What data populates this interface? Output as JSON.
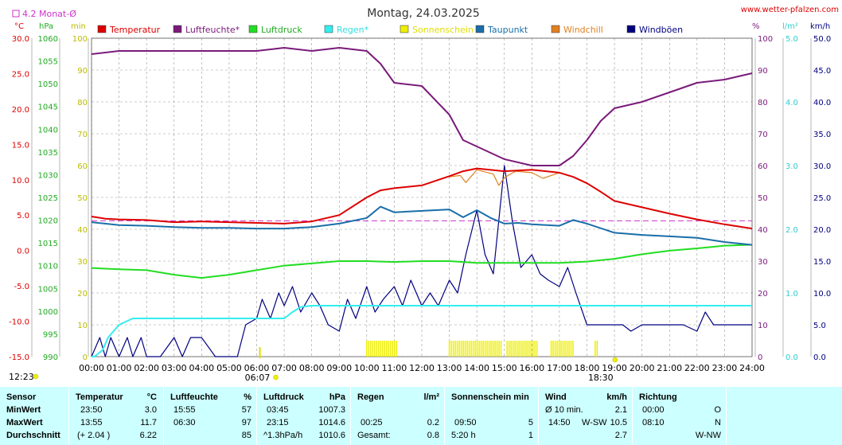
{
  "header": {
    "title": "Montag, 24.03.2025",
    "site": "www.wetter-pfalzen.com",
    "monthly_avg": "4.2 Monat-Ø"
  },
  "colors": {
    "temperatur": "#dd0000",
    "luftfeuchte": "#7a1a7a",
    "luftdruck": "#22dd22",
    "regen": "#33eeee",
    "sonnenschein": "#eeee00",
    "taupunkt": "#1a6ea8",
    "windchill": "#e08020",
    "windboeen": "#000080",
    "monthly_avg": "#cc33cc"
  },
  "chart_data": {
    "type": "line",
    "title": "Montag, 24.03.2025",
    "legend": [
      "Temperatur",
      "Luftfeuchte*",
      "Luftdruck",
      "Regen*",
      "Sonnenschein",
      "Taupunkt",
      "Windchill",
      "Windböen"
    ],
    "axis_units": {
      "temp": "°C",
      "pressure": "hPa",
      "sun": "min",
      "humidity": "%",
      "rain": "l/m²",
      "wind": "km/h"
    },
    "y_temp": {
      "range": [
        -15,
        30
      ],
      "ticks": [
        "30.0",
        "25.0",
        "20.0",
        "15.0",
        "10.0",
        "5.0",
        "0.0",
        "-5.0",
        "-10.0",
        "-15.0"
      ]
    },
    "y_pressure": {
      "range": [
        990,
        1060
      ],
      "ticks": [
        "1060",
        "1055",
        "1050",
        "1045",
        "1040",
        "1035",
        "1030",
        "1025",
        "1020",
        "1015",
        "1010",
        "1005",
        "1000",
        "995",
        "990"
      ]
    },
    "y_sun": {
      "range": [
        0,
        100
      ],
      "ticks": [
        "100",
        "90",
        "80",
        "70",
        "60",
        "50",
        "40",
        "30",
        "20",
        "10",
        "0"
      ]
    },
    "y_humidity": {
      "range": [
        0,
        100
      ],
      "ticks": [
        "100",
        "90",
        "80",
        "70",
        "60",
        "50",
        "40",
        "30",
        "20",
        "10",
        "0"
      ]
    },
    "y_rain": {
      "range": [
        0,
        5
      ],
      "ticks": [
        "5.0",
        "4.0",
        "3.0",
        "2.0",
        "1.0",
        "0.0"
      ]
    },
    "y_wind": {
      "range": [
        0,
        50
      ],
      "ticks": [
        "50.0",
        "45.0",
        "40.0",
        "35.0",
        "30.0",
        "25.0",
        "20.0",
        "15.0",
        "10.0",
        "5.0",
        "0.0"
      ]
    },
    "x_hours": [
      "00:00",
      "01:00",
      "02:00",
      "03:00",
      "04:00",
      "05:00",
      "06:00",
      "07:00",
      "08:00",
      "09:00",
      "10:00",
      "11:00",
      "12:00",
      "13:00",
      "14:00",
      "15:00",
      "16:00",
      "17:00",
      "18:00",
      "19:00",
      "20:00",
      "21:00",
      "22:00",
      "23:00",
      "24:00"
    ],
    "sunrise": "06:07",
    "sunset": "18:30",
    "day_length": "12:23",
    "monthly_avg_temp": 4.2,
    "series": [
      {
        "name": "Temperatur",
        "axis": "temp",
        "x": [
          0,
          0.5,
          1,
          2,
          3,
          4,
          5,
          6,
          7,
          8,
          9,
          10,
          10.5,
          11,
          12,
          13,
          13.5,
          14,
          15,
          16,
          17,
          17.5,
          18,
          18.5,
          19,
          20,
          21,
          22,
          23,
          24
        ],
        "y": [
          4.8,
          4.5,
          4.4,
          4.3,
          4.0,
          4.1,
          4.0,
          3.9,
          3.8,
          4.1,
          5.0,
          7.5,
          8.5,
          8.8,
          9.2,
          10.5,
          11.2,
          11.6,
          11.2,
          11.4,
          11.0,
          10.4,
          9.5,
          8.3,
          7.0,
          6.1,
          5.2,
          4.4,
          3.7,
          3.1
        ]
      },
      {
        "name": "Luftfeuchte*",
        "axis": "humidity",
        "x": [
          0,
          1,
          2,
          3,
          4,
          5,
          6,
          7,
          8,
          9,
          10,
          10.5,
          11,
          12,
          13,
          13.5,
          14,
          15,
          16,
          17,
          17.5,
          18,
          18.5,
          19,
          20,
          21,
          22,
          23,
          24
        ],
        "y": [
          95,
          96,
          96,
          96,
          96,
          96,
          96,
          97,
          96,
          97,
          96,
          92,
          86,
          85,
          76,
          68,
          66,
          62,
          60,
          60,
          63,
          68,
          74,
          78,
          80,
          83,
          86,
          87,
          89
        ]
      },
      {
        "name": "Luftdruck",
        "axis": "pressure",
        "x": [
          0,
          1,
          2,
          3,
          4,
          5,
          6,
          7,
          8,
          9,
          10,
          11,
          12,
          13,
          14,
          15,
          16,
          17,
          18,
          19,
          20,
          21,
          22,
          23,
          24
        ],
        "y": [
          1009.5,
          1009.2,
          1009.0,
          1008.0,
          1007.3,
          1008.0,
          1009.0,
          1010.0,
          1010.5,
          1011.0,
          1011.0,
          1010.8,
          1011.0,
          1011.0,
          1010.6,
          1010.6,
          1010.6,
          1010.6,
          1010.9,
          1011.5,
          1012.5,
          1013.3,
          1013.8,
          1014.4,
          1014.6
        ]
      },
      {
        "name": "Regen*",
        "axis": "rain",
        "x": [
          0,
          0.1,
          0.4,
          0.6,
          0.8,
          1.0,
          1.5,
          2.0,
          3.0,
          4.0,
          5.0,
          6.0,
          7.0,
          7.3,
          7.6,
          8.0,
          9.0,
          10.0,
          11.0,
          12.0,
          13.0,
          14.0,
          15.0,
          16.0,
          17.0,
          18.0,
          19.0,
          20.0,
          21.0,
          22.0,
          23.0,
          24.0
        ],
        "y": [
          0,
          0,
          0.1,
          0.3,
          0.4,
          0.5,
          0.6,
          0.6,
          0.6,
          0.6,
          0.6,
          0.6,
          0.6,
          0.7,
          0.78,
          0.8,
          0.8,
          0.8,
          0.8,
          0.8,
          0.8,
          0.8,
          0.8,
          0.8,
          0.8,
          0.8,
          0.8,
          0.8,
          0.8,
          0.8,
          0.8,
          0.8
        ]
      },
      {
        "name": "Taupunkt",
        "axis": "temp",
        "x": [
          0,
          1,
          2,
          3,
          4,
          5,
          6,
          7,
          8,
          9,
          10,
          10.5,
          11,
          12,
          13,
          13.5,
          14,
          14.5,
          15,
          15.5,
          16,
          17,
          17.5,
          18,
          19,
          20,
          21,
          22,
          23,
          24
        ],
        "y": [
          4.0,
          3.6,
          3.5,
          3.3,
          3.2,
          3.2,
          3.1,
          3.1,
          3.3,
          3.8,
          4.6,
          6.2,
          5.4,
          5.6,
          5.8,
          4.7,
          5.7,
          4.6,
          3.8,
          3.9,
          3.7,
          3.5,
          4.3,
          3.8,
          2.5,
          2.2,
          2.0,
          1.8,
          1.2,
          0.8
        ]
      },
      {
        "name": "Windchill",
        "axis": "temp",
        "x": [
          13.0,
          13.4,
          13.6,
          14.0,
          14.6,
          14.8,
          15.0,
          15.4,
          16.0,
          16.4,
          17.0
        ],
        "y": [
          10.4,
          10.6,
          9.6,
          11.4,
          10.8,
          9.2,
          10.3,
          11.2,
          11.0,
          10.2,
          11.0
        ]
      },
      {
        "name": "Windböen",
        "axis": "wind",
        "x": [
          0,
          0.3,
          0.5,
          0.7,
          1.0,
          1.3,
          1.5,
          1.8,
          2.0,
          2.5,
          3.0,
          3.3,
          3.6,
          4.0,
          4.5,
          5.0,
          5.3,
          5.6,
          6.0,
          6.2,
          6.5,
          6.8,
          7.0,
          7.3,
          7.6,
          8.0,
          8.3,
          8.6,
          9.0,
          9.3,
          9.6,
          10.0,
          10.3,
          10.6,
          11.0,
          11.3,
          11.6,
          12.0,
          12.3,
          12.6,
          13.0,
          13.3,
          13.6,
          14.0,
          14.3,
          14.6,
          15.0,
          15.3,
          15.6,
          16.0,
          16.3,
          16.6,
          17.0,
          17.3,
          17.6,
          18.0,
          18.3,
          18.6,
          19.0,
          19.3,
          19.6,
          20.0,
          20.5,
          21.0,
          21.5,
          22.0,
          22.3,
          22.6,
          23.0,
          23.3,
          23.6,
          24.0
        ],
        "y": [
          0,
          3,
          0,
          3,
          0,
          3,
          0,
          3,
          0,
          0,
          3,
          0,
          3,
          3,
          0,
          0,
          0,
          5,
          6,
          9,
          6,
          10,
          8,
          11,
          7,
          10,
          8,
          5,
          4,
          9,
          6,
          11,
          7,
          9,
          11,
          8,
          12,
          8,
          10,
          8,
          12,
          10,
          16,
          23,
          16,
          13,
          30,
          21,
          14,
          16,
          13,
          12,
          11,
          14,
          10,
          5,
          5,
          5,
          5,
          5,
          4,
          5,
          5,
          5,
          5,
          4,
          7,
          5,
          5,
          5,
          5,
          5
        ]
      }
    ],
    "sunshine_minutes": [
      {
        "start": 10.0,
        "end": 11.1
      },
      {
        "start": 13.0,
        "end": 14.9
      },
      {
        "start": 15.1,
        "end": 16.2
      },
      {
        "start": 16.7,
        "end": 17.5
      },
      {
        "start": 18.3,
        "end": 18.4
      }
    ]
  },
  "table": {
    "row_labels": {
      "sensor": "Sensor",
      "min": "MinWert",
      "max": "MaxWert",
      "avg": "Durchschnitt"
    },
    "temperatur": {
      "label": "Temperatur",
      "unit": "°C",
      "min_time": "23:50",
      "min_val": "3.0",
      "max_time": "13:55",
      "max_val": "11.7",
      "avg_trend": "(+ 2.04 )",
      "avg_val": "6.22"
    },
    "luftfeuchte": {
      "label": "Luftfeuchte",
      "unit": "%",
      "min_time": "15:55",
      "min_val": "57",
      "max_time": "06:30",
      "max_val": "97",
      "avg_val": "85"
    },
    "luftdruck": {
      "label": "Luftdruck",
      "unit": "hPa",
      "min_time": "03:45",
      "min_val": "1007.3",
      "max_time": "23:15",
      "max_val": "1014.6",
      "avg_trend": "^1.3hPa/h",
      "avg_val": "1010.6"
    },
    "regen": {
      "label": "Regen",
      "unit": "l/m²",
      "max_time": "00:25",
      "max_val": "0.2",
      "total_label": "Gesamt:",
      "total_val": "0.8"
    },
    "sonne": {
      "label": "Sonnenschein min",
      "max_time": "09:50",
      "max_val": "5",
      "total_val": "5:20 h",
      "total_extra": "1"
    },
    "wind": {
      "label": "Wind",
      "unit": "km/h",
      "min_label": "Ø 10 min.",
      "min_val": "2.1",
      "max_time": "14:50",
      "max_dir": "W-SW",
      "max_val": "10.5",
      "avg_val": "2.7"
    },
    "richtung": {
      "label": "Richtung",
      "min_time": "00:00",
      "min_val": "O",
      "max_time": "08:10",
      "max_val": "N",
      "avg_val": "W-NW"
    }
  }
}
